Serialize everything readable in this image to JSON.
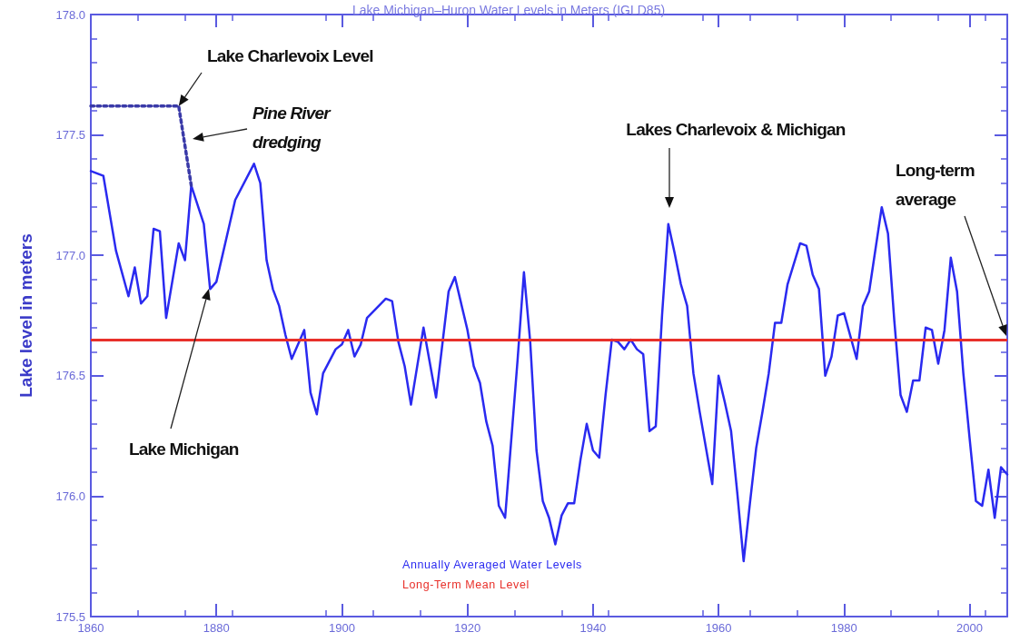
{
  "chart_data": {
    "type": "line",
    "title": "Lake Michigan–Huron Water Levels in Meters (IGLD85)",
    "ylabel": "Lake level in meters",
    "xlim": [
      1860,
      2006
    ],
    "xticks": [
      1860,
      1880,
      1900,
      1920,
      1940,
      1960,
      1980,
      2000
    ],
    "ylim": [
      175.5,
      178
    ],
    "yticks": [
      175.5,
      {
        "value": 176,
        "label": "176.0"
      },
      176.5,
      {
        "value": 177,
        "label": "177.0"
      },
      177.5,
      {
        "value": 178,
        "label": "178.0"
      }
    ],
    "grid": false,
    "marker": "none",
    "legend": "bottom",
    "series": [
      {
        "name": "Annually Averaged Water Levels",
        "color": "#2a2af0",
        "x": [
          1860,
          1862,
          1864,
          1866,
          1867,
          1868,
          1869,
          1870,
          1871,
          1872,
          1874,
          1875,
          1876,
          1878,
          1879,
          1880,
          1883,
          1886,
          1887,
          1888,
          1889,
          1890,
          1891,
          1892,
          1894,
          1895,
          1896,
          1897,
          1899,
          1900,
          1901,
          1902,
          1903,
          1904,
          1907,
          1908,
          1909,
          1910,
          1911,
          1913,
          1915,
          1917,
          1918,
          1920,
          1921,
          1922,
          1923,
          1924,
          1925,
          1926,
          1928,
          1929,
          1930,
          1931,
          1932,
          1933,
          1934,
          1935,
          1936,
          1937,
          1938,
          1939,
          1940,
          1941,
          1942,
          1943,
          1944,
          1945,
          1946,
          1947,
          1948,
          1949,
          1950,
          1951,
          1952,
          1953,
          1954,
          1955,
          1956,
          1957,
          1958,
          1959,
          1960,
          1961,
          1962,
          1963,
          1964,
          1965,
          1966,
          1967,
          1968,
          1969,
          1970,
          1971,
          1973,
          1974,
          1975,
          1976,
          1977,
          1978,
          1979,
          1980,
          1982,
          1983,
          1984,
          1986,
          1987,
          1988,
          1989,
          1990,
          1991,
          1992,
          1993,
          1994,
          1995,
          1996,
          1997,
          1998,
          1999,
          2000,
          2001,
          2002,
          2003,
          2004,
          2005,
          2006
        ],
        "values": [
          177.35,
          177.33,
          177.02,
          176.83,
          176.95,
          176.8,
          176.83,
          177.11,
          177.1,
          176.74,
          177.05,
          176.98,
          177.29,
          177.13,
          176.86,
          176.89,
          177.23,
          177.38,
          177.3,
          176.98,
          176.86,
          176.79,
          176.67,
          176.57,
          176.69,
          176.43,
          176.34,
          176.51,
          176.61,
          176.63,
          176.69,
          176.58,
          176.63,
          176.74,
          176.82,
          176.81,
          176.64,
          176.54,
          176.38,
          176.7,
          176.41,
          176.85,
          176.91,
          176.69,
          176.54,
          176.47,
          176.31,
          176.21,
          175.96,
          175.91,
          176.57,
          176.93,
          176.64,
          176.19,
          175.98,
          175.91,
          175.8,
          175.92,
          175.97,
          175.97,
          176.15,
          176.3,
          176.19,
          176.16,
          176.42,
          176.65,
          176.64,
          176.61,
          176.65,
          176.61,
          176.59,
          176.27,
          176.29,
          176.75,
          177.13,
          177.01,
          176.88,
          176.79,
          176.51,
          176.35,
          176.2,
          176.05,
          176.5,
          176.39,
          176.27,
          176.01,
          175.73,
          175.97,
          176.2,
          176.35,
          176.51,
          176.72,
          176.72,
          176.88,
          177.05,
          177.04,
          176.92,
          176.86,
          176.5,
          176.58,
          176.75,
          176.76,
          176.57,
          176.79,
          176.85,
          177.2,
          177.09,
          176.73,
          176.42,
          176.35,
          176.48,
          176.48,
          176.7,
          176.69,
          176.55,
          176.69,
          176.99,
          176.85,
          176.51,
          176.24,
          175.98,
          175.96,
          176.11,
          175.91,
          176.12,
          176.09
        ]
      },
      {
        "color": "#3a3aa8",
        "line_style": "dotted",
        "x": [
          1860,
          1874,
          1876
        ],
        "values": [
          177.62,
          177.62,
          177.29
        ]
      }
    ],
    "ref_lines": [
      {
        "axis": "y",
        "value": 176.65,
        "label": "Long-Term Mean Level",
        "color": "#e8302a"
      }
    ],
    "annotations": [
      {
        "text": "Lake Charlevoix Level",
        "x": 1874,
        "y": 177.62
      },
      "Pine River dredging",
      "Lakes Charlevoix & Michigan",
      "Lake Michigan",
      "Long-term average"
    ]
  }
}
